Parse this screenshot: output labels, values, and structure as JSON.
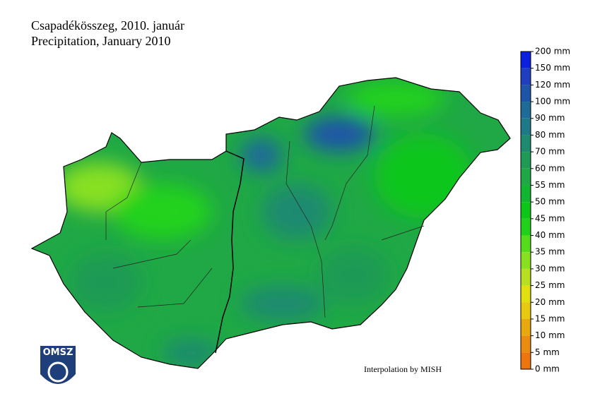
{
  "header": {
    "title_hu": "Csapadékösszeg, 2010. január",
    "title_en": "Precipitation, January 2010"
  },
  "legend": {
    "ticks": [
      {
        "value": 200,
        "label": "200 mm"
      },
      {
        "value": 150,
        "label": "150 mm"
      },
      {
        "value": 120,
        "label": "120 mm"
      },
      {
        "value": 100,
        "label": "100 mm"
      },
      {
        "value": 90,
        "label": "90 mm"
      },
      {
        "value": 80,
        "label": "80 mm"
      },
      {
        "value": 70,
        "label": "70 mm"
      },
      {
        "value": 60,
        "label": "60 mm"
      },
      {
        "value": 55,
        "label": "55 mm"
      },
      {
        "value": 50,
        "label": "50 mm"
      },
      {
        "value": 45,
        "label": "45 mm"
      },
      {
        "value": 40,
        "label": "40 mm"
      },
      {
        "value": 35,
        "label": "35 mm"
      },
      {
        "value": 30,
        "label": "30 mm"
      },
      {
        "value": 25,
        "label": "25 mm"
      },
      {
        "value": 20,
        "label": "20 mm"
      },
      {
        "value": 15,
        "label": "15 mm"
      },
      {
        "value": 10,
        "label": "10 mm"
      },
      {
        "value": 5,
        "label": "5 mm"
      },
      {
        "value": 0,
        "label": "0 mm"
      }
    ],
    "colors": [
      "#0a1fe0",
      "#1f3fc0",
      "#1f55a8",
      "#1f6b98",
      "#1d7a86",
      "#1e8a70",
      "#1f9a55",
      "#1fa845",
      "#12b530",
      "#0dc61a",
      "#22d21a",
      "#55dc1a",
      "#88e020",
      "#b8e020",
      "#e0e010",
      "#e8c810",
      "#e8a810",
      "#ea8c10",
      "#ee7410"
    ]
  },
  "credit": "Interpolation by MISH",
  "logo": "OMSZ"
}
